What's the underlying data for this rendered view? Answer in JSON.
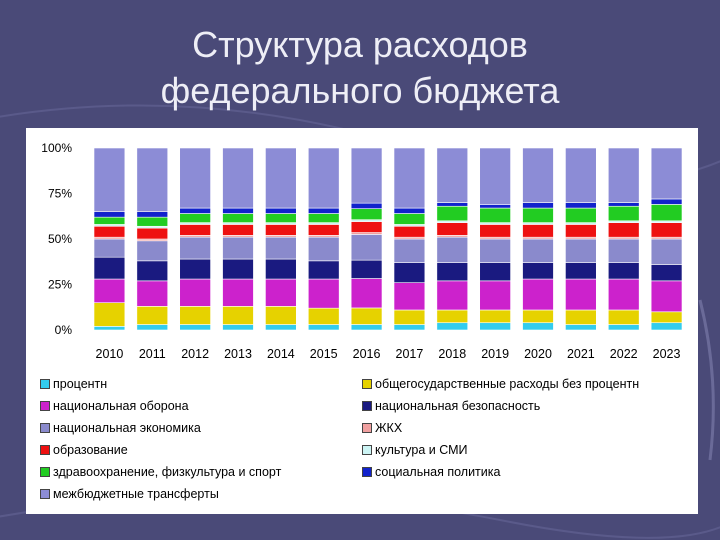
{
  "slide": {
    "title_line1": "Структура расходов",
    "title_line2": "федерального бюджета"
  },
  "chart_data": {
    "type": "bar",
    "stacked": true,
    "percent": true,
    "categories": [
      "2010",
      "2011",
      "2012",
      "2013",
      "2014",
      "2015",
      "2016",
      "2017",
      "2018",
      "2019",
      "2020",
      "2021",
      "2022",
      "2023"
    ],
    "y_ticks": [
      "0%",
      "25%",
      "50%",
      "75%",
      "100%"
    ],
    "ylim": [
      0,
      100
    ],
    "grid": false,
    "legend_position": "bottom",
    "series": [
      {
        "name": "процентн",
        "color": "#33ccee",
        "values": [
          2,
          3,
          3,
          3,
          3,
          3,
          3,
          3,
          4,
          4,
          4,
          3,
          3,
          4
        ]
      },
      {
        "name": "общегосударственные расходы без процентн",
        "color": "#e6d200",
        "values": [
          13,
          10,
          10,
          10,
          10,
          9,
          9,
          8,
          7,
          7,
          7,
          8,
          8,
          6
        ]
      },
      {
        "name": "национальная оборона",
        "color": "#cc22cc",
        "values": [
          13,
          14,
          15,
          15,
          15,
          16,
          16,
          15,
          16,
          16,
          17,
          17,
          17,
          17
        ]
      },
      {
        "name": "национальная безопасность",
        "color": "#1a1a80",
        "values": [
          12,
          11,
          11,
          11,
          11,
          10,
          10,
          11,
          10,
          10,
          9,
          9,
          9,
          9
        ]
      },
      {
        "name": "национальная экономика",
        "color": "#8a8acc",
        "values": [
          10,
          11,
          12,
          12,
          12,
          13,
          14,
          13,
          14,
          13,
          13,
          13,
          13,
          14
        ]
      },
      {
        "name": "ЖКХ",
        "color": "#f0a0a0",
        "values": [
          1,
          1,
          1,
          1,
          1,
          1,
          1,
          1,
          1,
          1,
          1,
          1,
          1,
          1
        ]
      },
      {
        "name": "образование",
        "color": "#ee1111",
        "values": [
          6,
          6,
          6,
          6,
          6,
          6,
          6,
          6,
          7,
          7,
          7,
          7,
          8,
          8
        ]
      },
      {
        "name": "культура и СМИ",
        "color": "#ccf4f4",
        "values": [
          1,
          1,
          1,
          1,
          1,
          1,
          1,
          1,
          1,
          1,
          1,
          1,
          1,
          1
        ]
      },
      {
        "name": "здравоохранение, физкультура и спорт",
        "color": "#22cc22",
        "values": [
          4,
          5,
          5,
          5,
          5,
          5,
          6,
          6,
          8,
          8,
          8,
          8,
          8,
          9
        ]
      },
      {
        "name": "социальная политика",
        "color": "#1122cc",
        "values": [
          3,
          3,
          3,
          3,
          3,
          3,
          3,
          3,
          2,
          2,
          3,
          3,
          2,
          3
        ]
      },
      {
        "name": "межбюджетные трансферты",
        "color": "#8c8cd6",
        "values": [
          35,
          35,
          33,
          33,
          33,
          33,
          30,
          33,
          30,
          31,
          30,
          30,
          30,
          28
        ]
      }
    ],
    "legend_order": [
      0,
      1,
      2,
      3,
      4,
      5,
      6,
      7,
      8,
      9,
      10
    ]
  }
}
